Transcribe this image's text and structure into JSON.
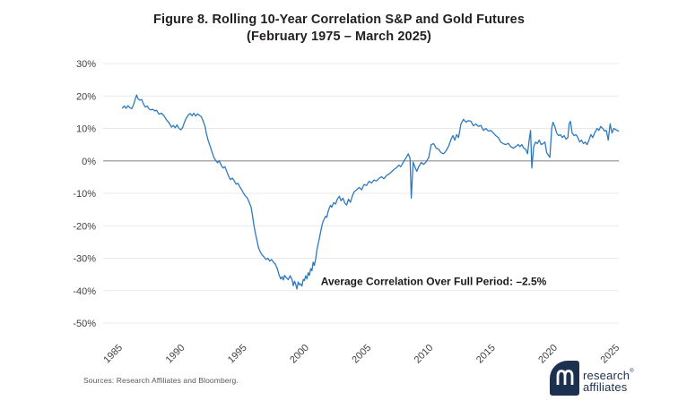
{
  "page": {
    "title_line1": "Figure 8. Rolling 10-Year Correlation S&P and Gold Futures",
    "title_line2": "(February 1975 – March 2025)",
    "source_text": "Sources: Research Affiliates and Bloomberg.",
    "logo": {
      "word1": "research",
      "word2": "affiliates",
      "trademark": "®"
    }
  },
  "colors": {
    "line": "#2E79BD",
    "grid": "#EAEAEA",
    "zero_line": "#A9A9A9",
    "title_text": "#231F20",
    "axis_label": "#3F3F3F",
    "annotation_text": "#1A1A1A",
    "source_text": "#595959",
    "brand_navy": "#1C3050",
    "background": "#FFFFFF"
  },
  "chart_data": {
    "type": "line",
    "title": "Figure 8. Rolling 10-Year Correlation S&P and Gold Futures (February 1975 – March 2025)",
    "xlabel": "",
    "ylabel": "",
    "grid": "horizontal",
    "legend": "none",
    "xlim": [
      1983.7,
      2025.2
    ],
    "ylim": [
      -50,
      30
    ],
    "yticks": [
      {
        "value": 30,
        "label": "30%"
      },
      {
        "value": 20,
        "label": "20%"
      },
      {
        "value": 10,
        "label": "10%"
      },
      {
        "value": 0,
        "label": "0%"
      },
      {
        "value": -10,
        "label": "-10%"
      },
      {
        "value": -20,
        "label": "-20%"
      },
      {
        "value": -30,
        "label": "-30%"
      },
      {
        "value": -40,
        "label": "-40%"
      },
      {
        "value": -50,
        "label": "-50%"
      }
    ],
    "xticks": [
      {
        "value": 1985,
        "label": "1985"
      },
      {
        "value": 1990,
        "label": "1990"
      },
      {
        "value": 1995,
        "label": "1995"
      },
      {
        "value": 2000,
        "label": "2000"
      },
      {
        "value": 2005,
        "label": "2005"
      },
      {
        "value": 2010,
        "label": "2010"
      },
      {
        "value": 2015,
        "label": "2015"
      },
      {
        "value": 2020,
        "label": "2020"
      },
      {
        "value": 2025,
        "label": "2025"
      }
    ],
    "annotation": {
      "text": "Average Correlation Over Full Period: –2.5%",
      "x": 2010.3,
      "y": -37.2
    },
    "series": [
      {
        "name": "Rolling 10-year correlation, S&P 500 and gold futures",
        "points": [
          [
            1985.25,
            16.3
          ],
          [
            1985.4,
            16.9
          ],
          [
            1985.55,
            16.2
          ],
          [
            1985.7,
            17.0
          ],
          [
            1985.85,
            16.4
          ],
          [
            1986.0,
            16.1
          ],
          [
            1986.15,
            17.3
          ],
          [
            1986.3,
            19.3
          ],
          [
            1986.4,
            20.3
          ],
          [
            1986.5,
            19.2
          ],
          [
            1986.65,
            18.7
          ],
          [
            1986.8,
            18.9
          ],
          [
            1986.95,
            17.5
          ],
          [
            1987.1,
            16.6
          ],
          [
            1987.25,
            16.9
          ],
          [
            1987.4,
            16.0
          ],
          [
            1987.55,
            15.7
          ],
          [
            1987.7,
            15.9
          ],
          [
            1987.85,
            15.4
          ],
          [
            1988.0,
            15.6
          ],
          [
            1988.2,
            14.4
          ],
          [
            1988.4,
            14.7
          ],
          [
            1988.6,
            13.9
          ],
          [
            1988.8,
            12.6
          ],
          [
            1989.0,
            11.8
          ],
          [
            1989.2,
            10.4
          ],
          [
            1989.35,
            10.9
          ],
          [
            1989.5,
            10.2
          ],
          [
            1989.65,
            11.1
          ],
          [
            1989.8,
            10.0
          ],
          [
            1989.95,
            9.6
          ],
          [
            1990.1,
            10.3
          ],
          [
            1990.25,
            12.0
          ],
          [
            1990.4,
            13.2
          ],
          [
            1990.55,
            14.1
          ],
          [
            1990.7,
            14.6
          ],
          [
            1990.85,
            13.9
          ],
          [
            1991.0,
            14.7
          ],
          [
            1991.15,
            13.8
          ],
          [
            1991.3,
            14.5
          ],
          [
            1991.45,
            14.0
          ],
          [
            1991.6,
            13.6
          ],
          [
            1991.75,
            12.3
          ],
          [
            1991.9,
            10.6
          ],
          [
            1992.0,
            8.6
          ],
          [
            1992.15,
            6.3
          ],
          [
            1992.3,
            4.6
          ],
          [
            1992.45,
            2.9
          ],
          [
            1992.6,
            1.2
          ],
          [
            1992.75,
            0.2
          ],
          [
            1992.9,
            -0.6
          ],
          [
            1993.05,
            0.0
          ],
          [
            1993.2,
            -1.3
          ],
          [
            1993.35,
            -2.2
          ],
          [
            1993.5,
            -1.8
          ],
          [
            1993.65,
            -3.3
          ],
          [
            1993.8,
            -4.7
          ],
          [
            1993.95,
            -5.8
          ],
          [
            1994.1,
            -5.3
          ],
          [
            1994.25,
            -6.2
          ],
          [
            1994.4,
            -7.2
          ],
          [
            1994.55,
            -6.9
          ],
          [
            1994.7,
            -8.0
          ],
          [
            1994.85,
            -8.9
          ],
          [
            1995.0,
            -10.0
          ],
          [
            1995.15,
            -10.8
          ],
          [
            1995.3,
            -11.4
          ],
          [
            1995.45,
            -12.7
          ],
          [
            1995.6,
            -14.2
          ],
          [
            1995.7,
            -16.4
          ],
          [
            1995.8,
            -19.1
          ],
          [
            1995.9,
            -21.2
          ],
          [
            1996.0,
            -23.1
          ],
          [
            1996.1,
            -24.9
          ],
          [
            1996.2,
            -26.7
          ],
          [
            1996.35,
            -28.1
          ],
          [
            1996.5,
            -29.0
          ],
          [
            1996.65,
            -29.6
          ],
          [
            1996.8,
            -30.4
          ],
          [
            1996.95,
            -30.0
          ],
          [
            1997.1,
            -30.9
          ],
          [
            1997.25,
            -30.4
          ],
          [
            1997.4,
            -31.2
          ],
          [
            1997.55,
            -31.8
          ],
          [
            1997.7,
            -33.1
          ],
          [
            1997.85,
            -35.1
          ],
          [
            1998.0,
            -36.4
          ],
          [
            1998.1,
            -35.7
          ],
          [
            1998.2,
            -36.7
          ],
          [
            1998.3,
            -35.3
          ],
          [
            1998.45,
            -36.1
          ],
          [
            1998.6,
            -36.6
          ],
          [
            1998.75,
            -35.4
          ],
          [
            1998.9,
            -36.5
          ],
          [
            1999.0,
            -38.5
          ],
          [
            1999.1,
            -37.1
          ],
          [
            1999.2,
            -38.1
          ],
          [
            1999.3,
            -39.5
          ],
          [
            1999.4,
            -37.3
          ],
          [
            1999.5,
            -38.2
          ],
          [
            1999.6,
            -37.9
          ],
          [
            1999.7,
            -38.6
          ],
          [
            1999.8,
            -36.5
          ],
          [
            1999.9,
            -36.9
          ],
          [
            2000.0,
            -35.4
          ],
          [
            2000.1,
            -36.4
          ],
          [
            2000.2,
            -34.5
          ],
          [
            2000.3,
            -35.3
          ],
          [
            2000.4,
            -33.2
          ],
          [
            2000.5,
            -33.9
          ],
          [
            2000.6,
            -31.2
          ],
          [
            2000.7,
            -32.2
          ],
          [
            2000.8,
            -30.4
          ],
          [
            2000.9,
            -27.6
          ],
          [
            2001.0,
            -25.7
          ],
          [
            2001.1,
            -23.9
          ],
          [
            2001.2,
            -21.9
          ],
          [
            2001.3,
            -20.1
          ],
          [
            2001.4,
            -18.7
          ],
          [
            2001.5,
            -17.9
          ],
          [
            2001.6,
            -17.1
          ],
          [
            2001.7,
            -17.4
          ],
          [
            2001.8,
            -15.7
          ],
          [
            2001.9,
            -14.5
          ],
          [
            2002.0,
            -13.7
          ],
          [
            2002.1,
            -14.3
          ],
          [
            2002.25,
            -12.9
          ],
          [
            2002.4,
            -13.3
          ],
          [
            2002.55,
            -11.8
          ],
          [
            2002.7,
            -10.9
          ],
          [
            2002.85,
            -12.3
          ],
          [
            2003.0,
            -11.5
          ],
          [
            2003.15,
            -13.0
          ],
          [
            2003.3,
            -13.6
          ],
          [
            2003.45,
            -11.8
          ],
          [
            2003.6,
            -12.8
          ],
          [
            2003.75,
            -10.9
          ],
          [
            2003.9,
            -9.5
          ],
          [
            2004.1,
            -8.9
          ],
          [
            2004.3,
            -8.2
          ],
          [
            2004.5,
            -8.9
          ],
          [
            2004.7,
            -7.3
          ],
          [
            2004.9,
            -7.6
          ],
          [
            2005.1,
            -6.3
          ],
          [
            2005.3,
            -6.8
          ],
          [
            2005.5,
            -5.9
          ],
          [
            2005.7,
            -6.2
          ],
          [
            2005.9,
            -5.4
          ],
          [
            2006.1,
            -4.9
          ],
          [
            2006.3,
            -5.5
          ],
          [
            2006.5,
            -4.5
          ],
          [
            2006.7,
            -4.1
          ],
          [
            2006.9,
            -3.4
          ],
          [
            2007.1,
            -2.7
          ],
          [
            2007.3,
            -2.1
          ],
          [
            2007.5,
            -1.3
          ],
          [
            2007.65,
            -1.8
          ],
          [
            2007.8,
            -0.8
          ],
          [
            2007.95,
            0.2
          ],
          [
            2008.1,
            1.1
          ],
          [
            2008.25,
            2.2
          ],
          [
            2008.4,
            0.8
          ],
          [
            2008.5,
            -11.5
          ],
          [
            2008.65,
            -0.4
          ],
          [
            2008.8,
            -2.0
          ],
          [
            2008.95,
            -3.2
          ],
          [
            2009.1,
            -1.8
          ],
          [
            2009.3,
            -0.5
          ],
          [
            2009.5,
            -1.1
          ],
          [
            2009.7,
            -0.3
          ],
          [
            2009.9,
            1.0
          ],
          [
            2010.1,
            5.0
          ],
          [
            2010.3,
            5.3
          ],
          [
            2010.5,
            3.9
          ],
          [
            2010.7,
            3.6
          ],
          [
            2010.9,
            2.5
          ],
          [
            2011.1,
            2.2
          ],
          [
            2011.3,
            3.1
          ],
          [
            2011.5,
            4.5
          ],
          [
            2011.7,
            6.7
          ],
          [
            2011.85,
            7.8
          ],
          [
            2012.0,
            6.4
          ],
          [
            2012.15,
            8.1
          ],
          [
            2012.3,
            7.2
          ],
          [
            2012.5,
            11.4
          ],
          [
            2012.7,
            12.8
          ],
          [
            2012.9,
            11.9
          ],
          [
            2013.1,
            12.4
          ],
          [
            2013.3,
            12.2
          ],
          [
            2013.5,
            10.8
          ],
          [
            2013.7,
            11.4
          ],
          [
            2013.9,
            10.6
          ],
          [
            2014.1,
            10.9
          ],
          [
            2014.3,
            9.4
          ],
          [
            2014.5,
            10.0
          ],
          [
            2014.7,
            9.2
          ],
          [
            2014.9,
            9.4
          ],
          [
            2015.1,
            8.6
          ],
          [
            2015.3,
            7.8
          ],
          [
            2015.5,
            7.2
          ],
          [
            2015.7,
            5.8
          ],
          [
            2015.9,
            5.3
          ],
          [
            2016.1,
            5.0
          ],
          [
            2016.3,
            5.4
          ],
          [
            2016.5,
            4.4
          ],
          [
            2016.7,
            3.9
          ],
          [
            2016.9,
            4.4
          ],
          [
            2017.1,
            5.0
          ],
          [
            2017.25,
            4.4
          ],
          [
            2017.4,
            5.0
          ],
          [
            2017.55,
            3.9
          ],
          [
            2017.7,
            3.6
          ],
          [
            2017.85,
            2.2
          ],
          [
            2018.0,
            6.7
          ],
          [
            2018.1,
            9.4
          ],
          [
            2018.2,
            -2.2
          ],
          [
            2018.35,
            4.4
          ],
          [
            2018.5,
            5.8
          ],
          [
            2018.65,
            5.3
          ],
          [
            2018.8,
            6.4
          ],
          [
            2018.95,
            5.0
          ],
          [
            2019.1,
            5.3
          ],
          [
            2019.25,
            5.8
          ],
          [
            2019.4,
            2.5
          ],
          [
            2019.55,
            1.7
          ],
          [
            2019.65,
            1.1
          ],
          [
            2019.8,
            10.0
          ],
          [
            2019.9,
            11.9
          ],
          [
            2020.05,
            10.6
          ],
          [
            2020.2,
            8.6
          ],
          [
            2020.35,
            7.8
          ],
          [
            2020.5,
            8.1
          ],
          [
            2020.65,
            7.2
          ],
          [
            2020.8,
            7.8
          ],
          [
            2020.95,
            6.7
          ],
          [
            2021.1,
            7.2
          ],
          [
            2021.2,
            11.4
          ],
          [
            2021.3,
            12.2
          ],
          [
            2021.45,
            8.6
          ],
          [
            2021.6,
            7.8
          ],
          [
            2021.75,
            8.1
          ],
          [
            2021.9,
            7.2
          ],
          [
            2022.05,
            5.8
          ],
          [
            2022.2,
            6.4
          ],
          [
            2022.35,
            5.3
          ],
          [
            2022.5,
            5.8
          ],
          [
            2022.65,
            5.0
          ],
          [
            2022.8,
            6.4
          ],
          [
            2022.95,
            8.1
          ],
          [
            2023.1,
            7.2
          ],
          [
            2023.25,
            8.6
          ],
          [
            2023.45,
            10.0
          ],
          [
            2023.6,
            9.4
          ],
          [
            2023.75,
            10.6
          ],
          [
            2023.9,
            10.0
          ],
          [
            2024.05,
            9.2
          ],
          [
            2024.2,
            9.4
          ],
          [
            2024.35,
            6.4
          ],
          [
            2024.5,
            11.4
          ],
          [
            2024.65,
            8.6
          ],
          [
            2024.8,
            10.0
          ],
          [
            2025.0,
            9.5
          ],
          [
            2025.17,
            9.2
          ]
        ]
      }
    ]
  }
}
